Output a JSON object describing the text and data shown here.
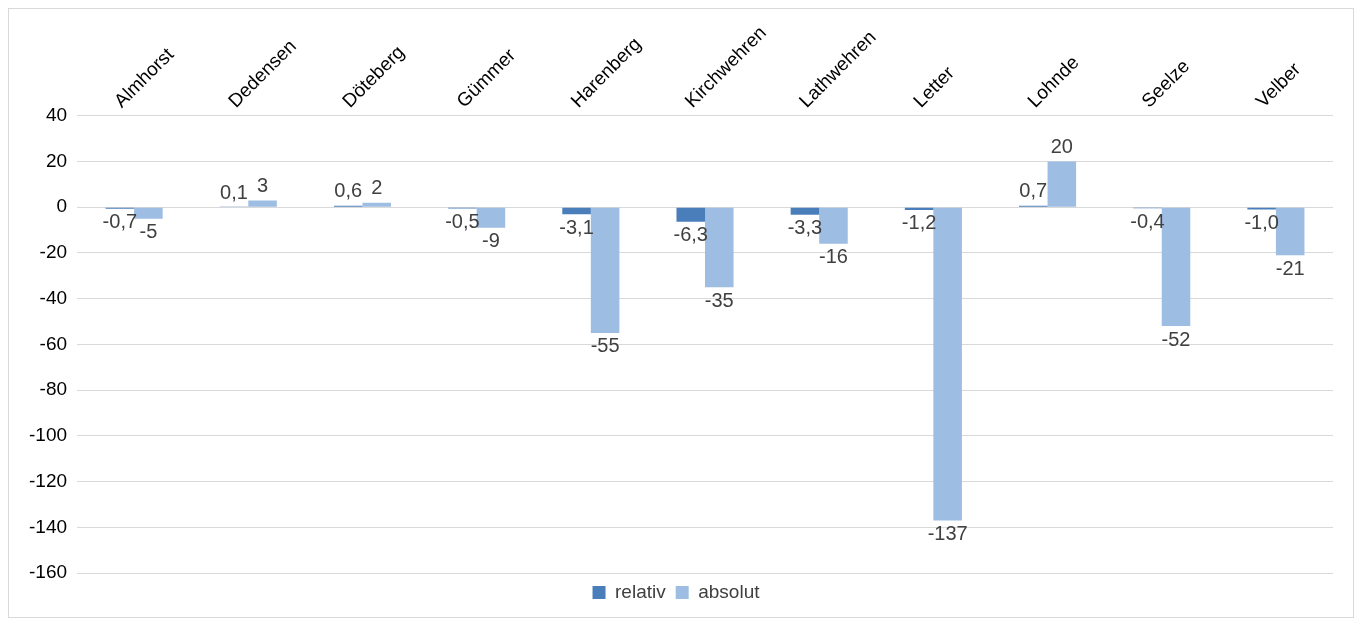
{
  "chart_data": {
    "type": "bar",
    "categories": [
      "Almhorst",
      "Dedensen",
      "Döteberg",
      "Gümmer",
      "Harenberg",
      "Kirchwehren",
      "Lathwehren",
      "Letter",
      "Lohnde",
      "Seelze",
      "Velber"
    ],
    "series": [
      {
        "name": "relativ",
        "color": "#4a7ebb",
        "values": [
          -0.7,
          0.1,
          0.6,
          -0.5,
          -3.1,
          -6.3,
          -3.3,
          -1.2,
          0.7,
          -0.4,
          -1.0
        ],
        "value_labels": [
          "-0,7",
          "0,1",
          "0,6",
          "-0,5",
          "-3,1",
          "-6,3",
          "-3,3",
          "-1,2",
          "0,7",
          "-0,4",
          "-1,0"
        ]
      },
      {
        "name": "absolut",
        "color": "#9dbde3",
        "values": [
          -5,
          3,
          2,
          -9,
          -55,
          -35,
          -16,
          -137,
          20,
          -52,
          -21
        ],
        "value_labels": [
          "-5",
          "3",
          "2",
          "-9",
          "-55",
          "-35",
          "-16",
          "-137",
          "20",
          "-52",
          "-21"
        ]
      }
    ],
    "ylim": [
      -160,
      40
    ],
    "yticks": [
      -160,
      -140,
      -120,
      -100,
      -80,
      -60,
      -40,
      -20,
      0,
      20,
      40
    ],
    "grid": "y",
    "legend": "bottom"
  }
}
